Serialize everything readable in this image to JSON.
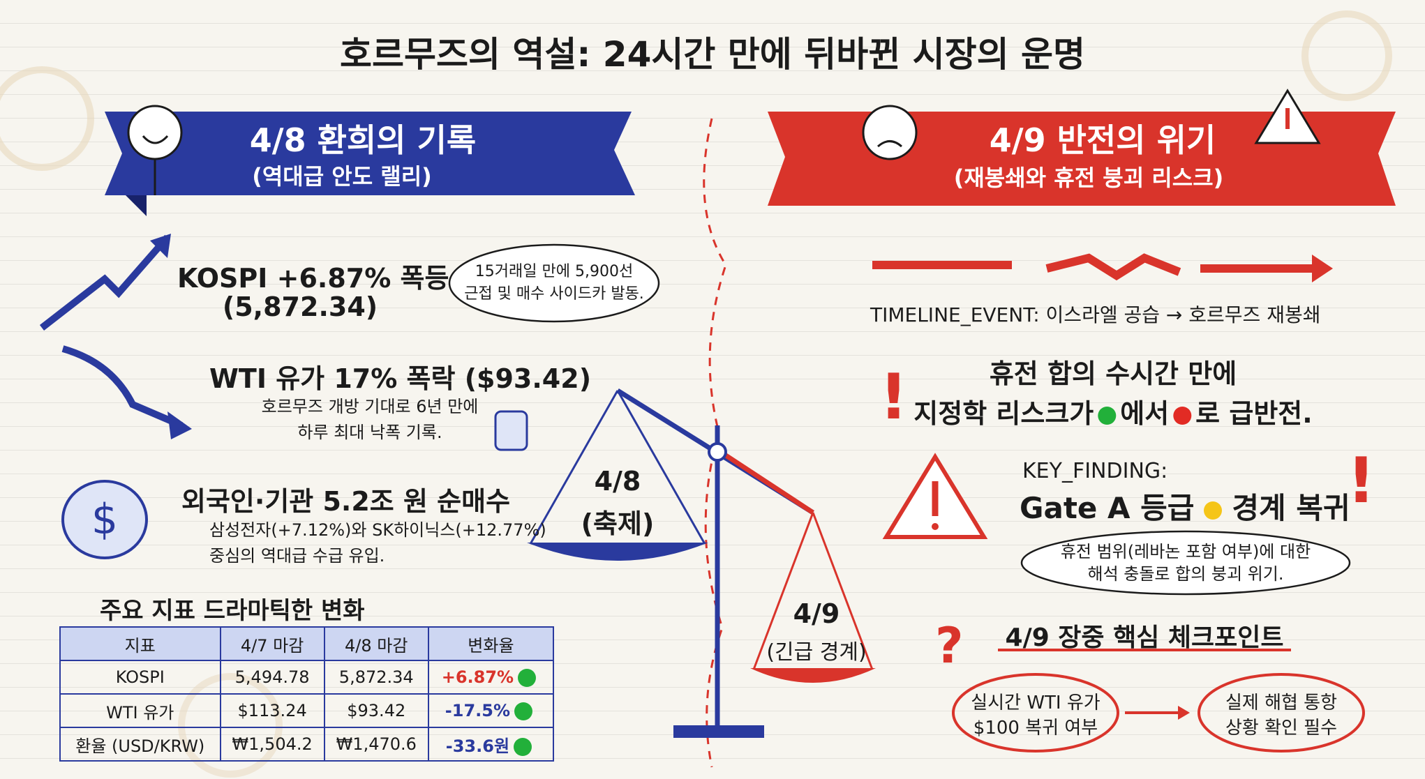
{
  "title": "호르무즈의 역설: 24시간 만에 뒤바뀐 시장의 운명",
  "left": {
    "banner": {
      "title": "4/8 환희의 기록",
      "subtitle": "(역대급 안도 랠리)"
    },
    "kospi": {
      "headline": "KOSPI +6.87% 폭등",
      "value": "(5,872.34)",
      "bubble": [
        "15거래일 만에 5,900선",
        "근접 및 매수 사이드카 발동."
      ]
    },
    "wti": {
      "headline": "WTI 유가 17% 폭락 ($93.42)",
      "notes": [
        "호르무즈 개방 기대로 6년 만에",
        "하루 최대 낙폭 기록."
      ]
    },
    "flows": {
      "headline": "외국인·기관 5.2조 원 순매수",
      "notes": [
        "삼성전자(+7.12%)와 SK하이닉스(+12.77%)",
        "중심의 역대급 수급 유입."
      ]
    },
    "table": {
      "title": "주요 지표 드라마틱한 변화",
      "header": [
        "지표",
        "4/7 마감",
        "4/8 마감",
        "변화율"
      ],
      "rows": [
        [
          "KOSPI",
          "5,494.78",
          "5,872.34",
          "+6.87%"
        ],
        [
          "WTI 유가",
          "$113.24",
          "$93.42",
          "-17.5%"
        ],
        [
          "환율 (USD/KRW)",
          "₩1,504.2",
          "₩1,470.6",
          "-33.6원"
        ]
      ]
    }
  },
  "scale": {
    "left": [
      "4/8",
      "(축제)"
    ],
    "right": [
      "4/9",
      "(긴급 경계)"
    ]
  },
  "right": {
    "banner": {
      "title": "4/9 반전의 위기",
      "subtitle": "(재봉쇄와 휴전 붕괴 리스크)"
    },
    "timeline": "TIMELINE_EVENT: 이스라엘 공습 → 호르무즈 재봉쇄",
    "ceasefire": {
      "line1": "휴전 합의 수시간 만에",
      "line2": [
        "지정학 리스크가",
        "에서",
        "로 급반전."
      ]
    },
    "finding": {
      "label": "KEY_FINDING:",
      "grade": "Gate A 등급",
      "status": "경계 복귀"
    },
    "bubble": [
      "휴전 범위(레바논 포함 여부)에 대한",
      "해석 충돌로 합의 붕괴 위기."
    ],
    "checkpoints": {
      "title": "4/9 장중 핵심 체크포인트",
      "items": [
        [
          "실시간 WTI 유가",
          "$100 복귀 여부"
        ],
        [
          "실제 해협 통항",
          "상황 확인 필수"
        ]
      ]
    }
  }
}
